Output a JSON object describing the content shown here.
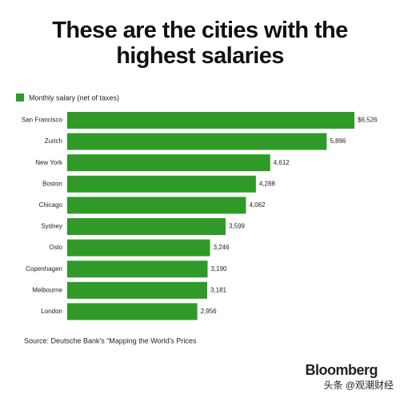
{
  "chart_data": {
    "type": "bar",
    "orientation": "horizontal",
    "title": "These are the cities with the highest salaries",
    "legend": "Monthly salary (net of taxes)",
    "color": "#2f9a27",
    "categories": [
      "San Francisco",
      "Zurich",
      "New York",
      "Boston",
      "Chicago",
      "Sydney",
      "Oslo",
      "Copenhagen",
      "Melbourne",
      "London"
    ],
    "values": [
      6526,
      5896,
      4612,
      4288,
      4062,
      3599,
      3246,
      3190,
      3181,
      2956
    ],
    "value_labels": [
      "$6,526",
      "5,896",
      "4,612",
      "4,288",
      "4,062",
      "3,599",
      "3,246",
      "3,190",
      "3,181",
      "2,956"
    ],
    "source": "Source: Deutsche Bank's “Mapping the World's Prices",
    "brand": "Bloomberg",
    "watermark": "头条 @观潮财经"
  }
}
